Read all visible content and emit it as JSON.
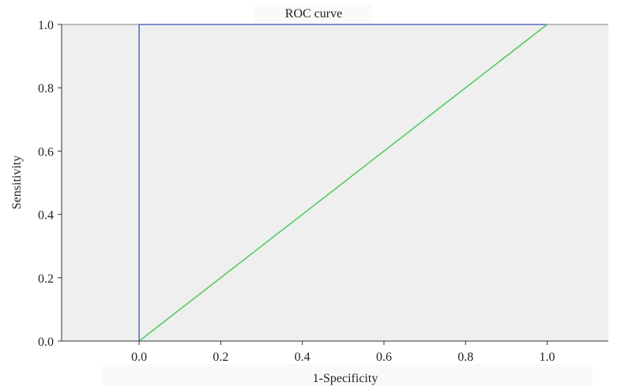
{
  "chart_data": {
    "type": "line",
    "title": "ROC curve",
    "xlabel": "1-Specificity",
    "ylabel": "Sensitivity",
    "xlim": [
      -0.19,
      1.15
    ],
    "ylim": [
      0,
      1
    ],
    "x_ticks": [
      "0.0",
      "0.2",
      "0.4",
      "0.6",
      "0.8",
      "1.0"
    ],
    "y_ticks": [
      "0.0",
      "0.2",
      "0.4",
      "0.6",
      "0.8",
      "1.0"
    ],
    "grid": false,
    "legend": "none",
    "plot_background": "#efefef",
    "series": [
      {
        "color": "#5b73c4",
        "x": [
          0,
          0,
          1
        ],
        "y": [
          0,
          1,
          1
        ]
      },
      {
        "color": "#57c965",
        "x": [
          0,
          1
        ],
        "y": [
          0,
          1
        ]
      }
    ]
  }
}
